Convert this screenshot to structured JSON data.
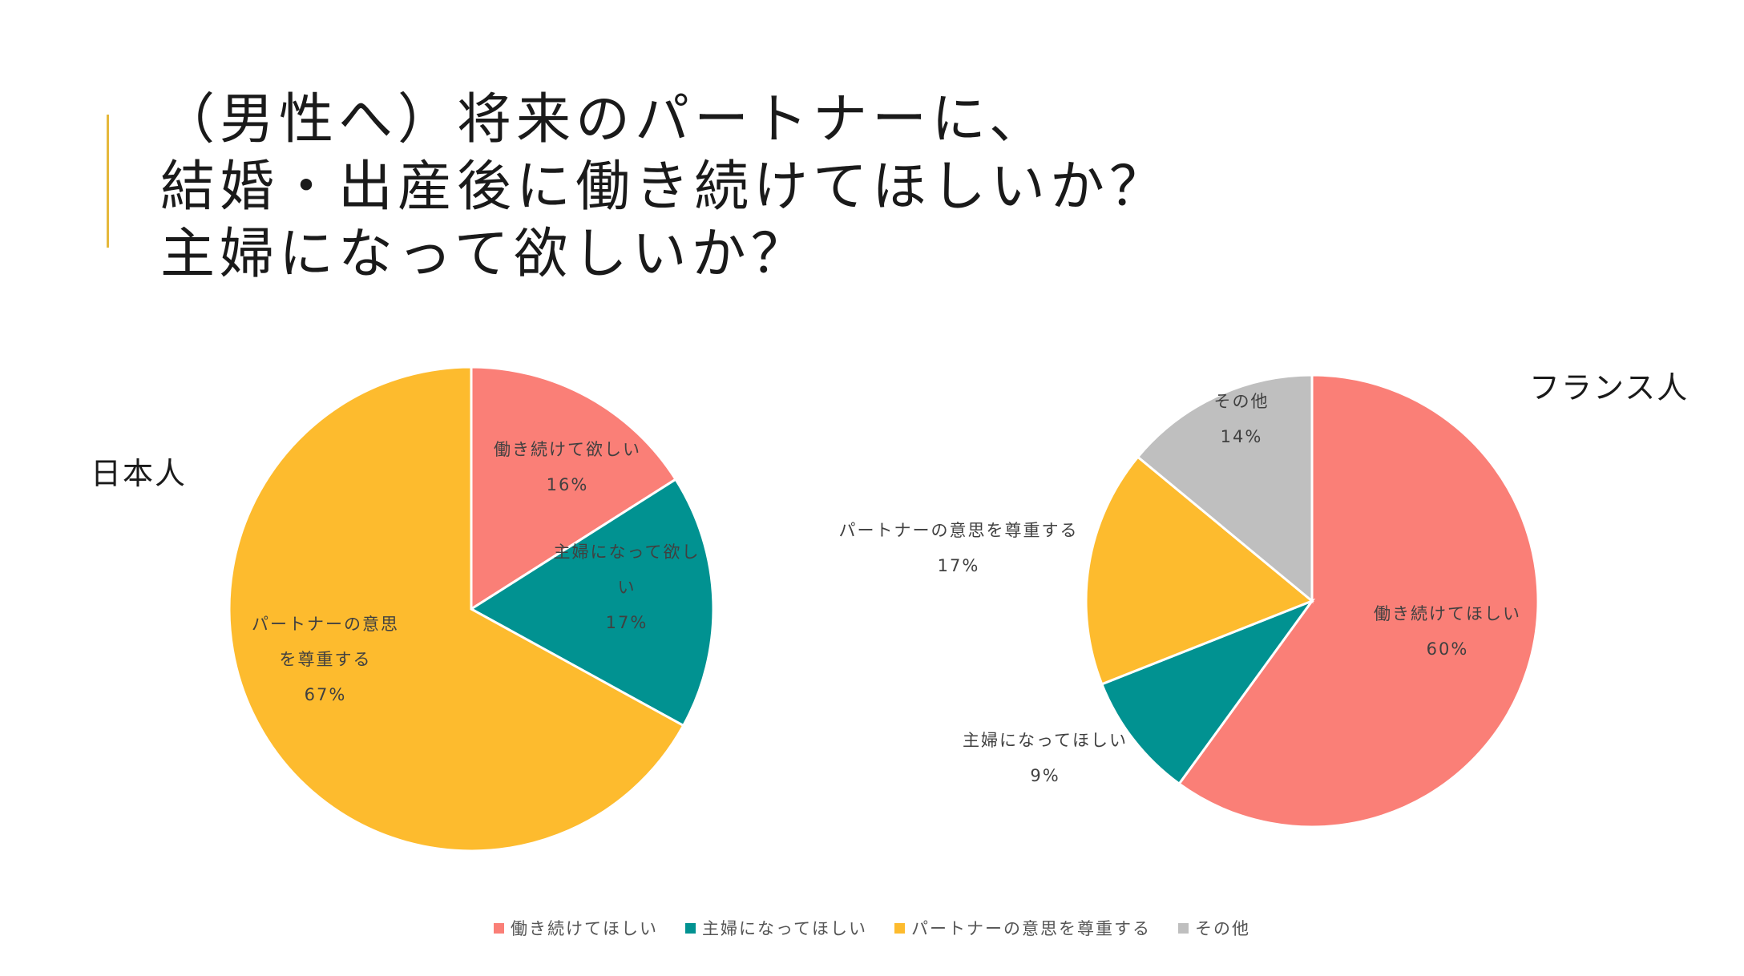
{
  "title_lines": [
    "（男性へ）将来のパートナーに、",
    "結婚・出産後に働き続けてほしいか？",
    "主婦になって欲しいか？"
  ],
  "colors": {
    "work": "#fa7f77",
    "housewife": "#019291",
    "respect": "#fdbb2e",
    "other": "#bfbfbf",
    "accent": "#e5b83b"
  },
  "chart_data": [
    {
      "type": "pie",
      "panel_label": "日本人",
      "slices": [
        {
          "label_lines": [
            "働き続けて欲しい"
          ],
          "value": 16,
          "percent_label": "16%",
          "color_key": "work"
        },
        {
          "label_lines": [
            "主婦になって欲し",
            "い"
          ],
          "value": 17,
          "percent_label": "17%",
          "color_key": "housewife"
        },
        {
          "label_lines": [
            "パートナーの意思",
            "を尊重する"
          ],
          "value": 67,
          "percent_label": "67%",
          "color_key": "respect"
        }
      ]
    },
    {
      "type": "pie",
      "panel_label": "フランス人",
      "slices": [
        {
          "label_lines": [
            "働き続けてほしい"
          ],
          "value": 60,
          "percent_label": "60%",
          "color_key": "work"
        },
        {
          "label_lines": [
            "主婦になってほしい"
          ],
          "value": 9,
          "percent_label": "9%",
          "color_key": "housewife"
        },
        {
          "label_lines": [
            "パートナーの意思を尊重する"
          ],
          "value": 17,
          "percent_label": "17%",
          "color_key": "respect"
        },
        {
          "label_lines": [
            "その他"
          ],
          "value": 14,
          "percent_label": "14%",
          "color_key": "other"
        }
      ]
    }
  ],
  "legend": [
    {
      "label": "働き続けてほしい",
      "color_key": "work"
    },
    {
      "label": "主婦になってほしい",
      "color_key": "housewife"
    },
    {
      "label": "パートナーの意思を尊重する",
      "color_key": "respect"
    },
    {
      "label": "その他",
      "color_key": "other"
    }
  ]
}
